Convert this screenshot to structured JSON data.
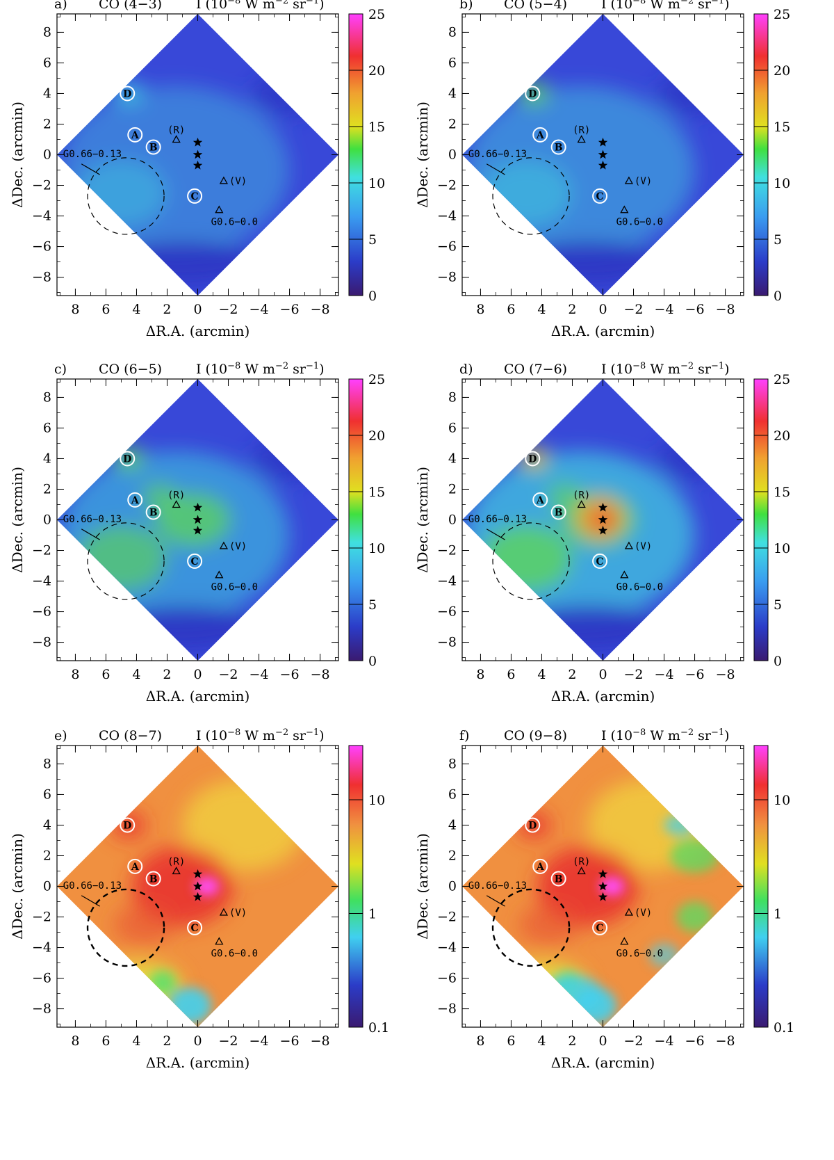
{
  "figure": {
    "panel_layout": "3 rows x 2 columns",
    "xlabel": "ΔR.A. (arcmin)",
    "ylabel": "ΔDec. (arcmin)",
    "xlim": [
      9.2,
      -9.2
    ],
    "ylim": [
      -9.2,
      9.2
    ],
    "xticks": [
      "8",
      "6",
      "4",
      "2",
      "0",
      "−2",
      "−4",
      "−6",
      "−8"
    ],
    "yticks": [
      "8",
      "6",
      "4",
      "2",
      "0",
      "−2",
      "−4",
      "−6",
      "−8"
    ],
    "ticks_num": [
      8,
      6,
      4,
      2,
      0,
      -2,
      -4,
      -6,
      -8
    ],
    "map_colors": {
      "lin_low": "#3848d8",
      "lin_mid": "#40c8e0",
      "lin_high": "#60d850",
      "log_base": "#f09040",
      "log_peak": "#e83030",
      "log_low": "#40d0f0"
    }
  },
  "chart_data": [
    {
      "type": "heatmap",
      "panel": "a)",
      "title_line": "CO (4−3)",
      "quantity": "I (10",
      "exp": "−8",
      "unit_tail": " W m",
      "exp2": "−2",
      "unit_tail2": " sr",
      "exp3": "−1",
      "unit_tail3": ")",
      "colorbar": {
        "scale": "linear",
        "range": [
          0,
          25
        ],
        "ticks": [
          "0",
          "5",
          "10",
          "15",
          "20",
          "25"
        ]
      },
      "intensity_level": 0.18
    },
    {
      "type": "heatmap",
      "panel": "b)",
      "title_line": "CO (5−4)",
      "quantity": "I (10",
      "exp": "−8",
      "unit_tail": " W m",
      "exp2": "−2",
      "unit_tail2": " sr",
      "exp3": "−1",
      "unit_tail3": ")",
      "colorbar": {
        "scale": "linear",
        "range": [
          0,
          25
        ],
        "ticks": [
          "0",
          "5",
          "10",
          "15",
          "20",
          "25"
        ]
      },
      "intensity_level": 0.25
    },
    {
      "type": "heatmap",
      "panel": "c)",
      "title_line": "CO (6−5)",
      "quantity": "I (10",
      "exp": "−8",
      "unit_tail": " W m",
      "exp2": "−2",
      "unit_tail2": " sr",
      "exp3": "−1",
      "unit_tail3": ")",
      "colorbar": {
        "scale": "linear",
        "range": [
          0,
          25
        ],
        "ticks": [
          "0",
          "5",
          "10",
          "15",
          "20",
          "25"
        ]
      },
      "intensity_level": 0.32
    },
    {
      "type": "heatmap",
      "panel": "d)",
      "title_line": "CO (7−6)",
      "quantity": "I (10",
      "exp": "−8",
      "unit_tail": " W m",
      "exp2": "−2",
      "unit_tail2": " sr",
      "exp3": "−1",
      "unit_tail3": ")",
      "colorbar": {
        "scale": "linear",
        "range": [
          0,
          25
        ],
        "ticks": [
          "0",
          "5",
          "10",
          "15",
          "20",
          "25"
        ]
      },
      "intensity_level": 0.45
    },
    {
      "type": "heatmap",
      "panel": "e)",
      "title_line": "CO (8−7)",
      "quantity": "I (10",
      "exp": "−8",
      "unit_tail": " W m",
      "exp2": "−2",
      "unit_tail2": " sr",
      "exp3": "−1",
      "unit_tail3": ")",
      "colorbar": {
        "scale": "log",
        "range": [
          0.1,
          30
        ],
        "ticks": [
          "0.1",
          "1",
          "10"
        ]
      },
      "intensity_level": 0.8
    },
    {
      "type": "heatmap",
      "panel": "f)",
      "title_line": "CO (9−8)",
      "quantity": "I (10",
      "exp": "−8",
      "unit_tail": " W m",
      "exp2": "−2",
      "unit_tail2": " sr",
      "exp3": "−1",
      "unit_tail3": ")",
      "colorbar": {
        "scale": "log",
        "range": [
          0.1,
          30
        ],
        "ticks": [
          "0.1",
          "1",
          "10"
        ]
      },
      "intensity_level": 0.75
    }
  ],
  "markers": {
    "stars": [
      {
        "ra": 0,
        "dec": 0.8
      },
      {
        "ra": 0,
        "dec": 0
      },
      {
        "ra": 0,
        "dec": -0.7
      }
    ],
    "circles": [
      {
        "label": "A",
        "ra": 4.1,
        "dec": 1.3
      },
      {
        "label": "B",
        "ra": 2.9,
        "dec": 0.5
      },
      {
        "label": "C",
        "ra": 0.2,
        "dec": -2.7
      },
      {
        "label": "D",
        "ra": 4.6,
        "dec": 4.0
      }
    ],
    "triangles": [
      {
        "label": "(R)",
        "ra": 1.4,
        "dec": 1.0,
        "label_side": "above"
      },
      {
        "label": "(V)",
        "ra": -1.7,
        "dec": -1.7,
        "label_side": "right"
      },
      {
        "label": "G0.6−0.0",
        "ra": -1.4,
        "dec": -3.6,
        "label_side": "below"
      }
    ],
    "region": {
      "label": "G0.66−0.13",
      "ra": 4.7,
      "dec": -2.7,
      "radius": 2.5
    },
    "map_square_corners": [
      {
        "ra": 0,
        "dec": 9.2
      },
      {
        "ra": -9.2,
        "dec": 0
      },
      {
        "ra": 0,
        "dec": -9.2
      },
      {
        "ra": 9.2,
        "dec": 0
      }
    ]
  }
}
